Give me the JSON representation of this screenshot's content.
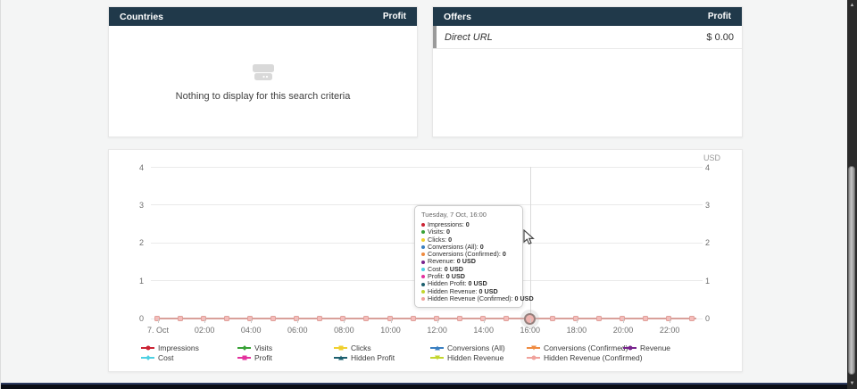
{
  "countries_panel": {
    "title": "Countries",
    "metric_label": "Profit",
    "empty_message": "Nothing to display for this search criteria"
  },
  "offers_panel": {
    "title": "Offers",
    "metric_label": "Profit",
    "rows": [
      {
        "label": "Direct URL",
        "value": "$ 0.00"
      }
    ]
  },
  "chart_data": {
    "type": "line",
    "title": "",
    "unit_label": "USD",
    "date": "7 Oct",
    "ylim": [
      0,
      4
    ],
    "yticks": [
      "4",
      "3",
      "2",
      "1",
      "0"
    ],
    "xtick_labels": [
      "7. Oct",
      "02:00",
      "04:00",
      "06:00",
      "08:00",
      "10:00",
      "12:00",
      "14:00",
      "16:00",
      "18:00",
      "20:00",
      "22:00"
    ],
    "x_points": [
      "00:00",
      "01:00",
      "02:00",
      "03:00",
      "04:00",
      "05:00",
      "06:00",
      "07:00",
      "08:00",
      "09:00",
      "10:00",
      "11:00",
      "12:00",
      "13:00",
      "14:00",
      "15:00",
      "16:00",
      "17:00",
      "18:00",
      "19:00",
      "20:00",
      "21:00",
      "22:00",
      "23:00"
    ],
    "hovered_index": 16,
    "grid": true,
    "legend_position": "bottom",
    "visible_line_color": "#d9a09a",
    "marker_fill_color": "#f5bcba",
    "series": [
      {
        "name": "Impressions",
        "color": "#cb2434",
        "marker": "circle",
        "values": [
          0,
          0,
          0,
          0,
          0,
          0,
          0,
          0,
          0,
          0,
          0,
          0,
          0,
          0,
          0,
          0,
          0,
          0,
          0,
          0,
          0,
          0,
          0,
          0
        ]
      },
      {
        "name": "Visits",
        "color": "#38a136",
        "marker": "diamond",
        "values": [
          0,
          0,
          0,
          0,
          0,
          0,
          0,
          0,
          0,
          0,
          0,
          0,
          0,
          0,
          0,
          0,
          0,
          0,
          0,
          0,
          0,
          0,
          0,
          0
        ]
      },
      {
        "name": "Clicks",
        "color": "#f0d030",
        "marker": "square",
        "values": [
          0,
          0,
          0,
          0,
          0,
          0,
          0,
          0,
          0,
          0,
          0,
          0,
          0,
          0,
          0,
          0,
          0,
          0,
          0,
          0,
          0,
          0,
          0,
          0
        ]
      },
      {
        "name": "Conversions (All)",
        "color": "#3a7fc1",
        "marker": "triangle",
        "values": [
          0,
          0,
          0,
          0,
          0,
          0,
          0,
          0,
          0,
          0,
          0,
          0,
          0,
          0,
          0,
          0,
          0,
          0,
          0,
          0,
          0,
          0,
          0,
          0
        ]
      },
      {
        "name": "Conversions (Confirmed)",
        "color": "#ef8b41",
        "marker": "triangle-down",
        "values": [
          0,
          0,
          0,
          0,
          0,
          0,
          0,
          0,
          0,
          0,
          0,
          0,
          0,
          0,
          0,
          0,
          0,
          0,
          0,
          0,
          0,
          0,
          0,
          0
        ]
      },
      {
        "name": "Revenue",
        "color": "#78238d",
        "marker": "circle",
        "values": [
          0,
          0,
          0,
          0,
          0,
          0,
          0,
          0,
          0,
          0,
          0,
          0,
          0,
          0,
          0,
          0,
          0,
          0,
          0,
          0,
          0,
          0,
          0,
          0
        ]
      },
      {
        "name": "Cost",
        "color": "#4dd0e2",
        "marker": "diamond",
        "values": [
          0,
          0,
          0,
          0,
          0,
          0,
          0,
          0,
          0,
          0,
          0,
          0,
          0,
          0,
          0,
          0,
          0,
          0,
          0,
          0,
          0,
          0,
          0,
          0
        ]
      },
      {
        "name": "Profit",
        "color": "#e3319d",
        "marker": "square",
        "values": [
          0,
          0,
          0,
          0,
          0,
          0,
          0,
          0,
          0,
          0,
          0,
          0,
          0,
          0,
          0,
          0,
          0,
          0,
          0,
          0,
          0,
          0,
          0,
          0
        ]
      },
      {
        "name": "Hidden Profit",
        "color": "#1c5f6e",
        "marker": "triangle",
        "values": [
          0,
          0,
          0,
          0,
          0,
          0,
          0,
          0,
          0,
          0,
          0,
          0,
          0,
          0,
          0,
          0,
          0,
          0,
          0,
          0,
          0,
          0,
          0,
          0
        ]
      },
      {
        "name": "Hidden Revenue",
        "color": "#c3d62e",
        "marker": "triangle-down",
        "values": [
          0,
          0,
          0,
          0,
          0,
          0,
          0,
          0,
          0,
          0,
          0,
          0,
          0,
          0,
          0,
          0,
          0,
          0,
          0,
          0,
          0,
          0,
          0,
          0
        ]
      },
      {
        "name": "Hidden Revenue (Confirmed)",
        "color": "#f0a29c",
        "marker": "circle",
        "values": [
          0,
          0,
          0,
          0,
          0,
          0,
          0,
          0,
          0,
          0,
          0,
          0,
          0,
          0,
          0,
          0,
          0,
          0,
          0,
          0,
          0,
          0,
          0,
          0
        ]
      }
    ]
  },
  "tooltip": {
    "title": "Tuesday, 7 Oct, 16:00",
    "items": [
      {
        "label": "Impressions",
        "value": "0",
        "color": "#cb2434"
      },
      {
        "label": "Visits",
        "value": "0",
        "color": "#38a136"
      },
      {
        "label": "Clicks",
        "value": "0",
        "color": "#f0d030"
      },
      {
        "label": "Conversions (All)",
        "value": "0",
        "color": "#3a7fc1"
      },
      {
        "label": "Conversions (Confirmed)",
        "value": "0",
        "color": "#ef8b41"
      },
      {
        "label": "Revenue",
        "value": "0 USD",
        "color": "#78238d"
      },
      {
        "label": "Cost",
        "value": "0 USD",
        "color": "#4dd0e2"
      },
      {
        "label": "Profit",
        "value": "0 USD",
        "color": "#e3319d"
      },
      {
        "label": "Hidden Profit",
        "value": "0 USD",
        "color": "#1c5f6e"
      },
      {
        "label": "Hidden Revenue",
        "value": "0 USD",
        "color": "#c3d62e"
      },
      {
        "label": "Hidden Revenue (Confirmed)",
        "value": "0 USD",
        "color": "#f0a29c"
      }
    ]
  },
  "scrollbar": {
    "up_arrow": "▲",
    "down_arrow": "▼"
  },
  "colors": {
    "panel_header_bg": "#20394a",
    "page_bg": "#f4f5f5",
    "axis_line": "#d9a09a"
  }
}
